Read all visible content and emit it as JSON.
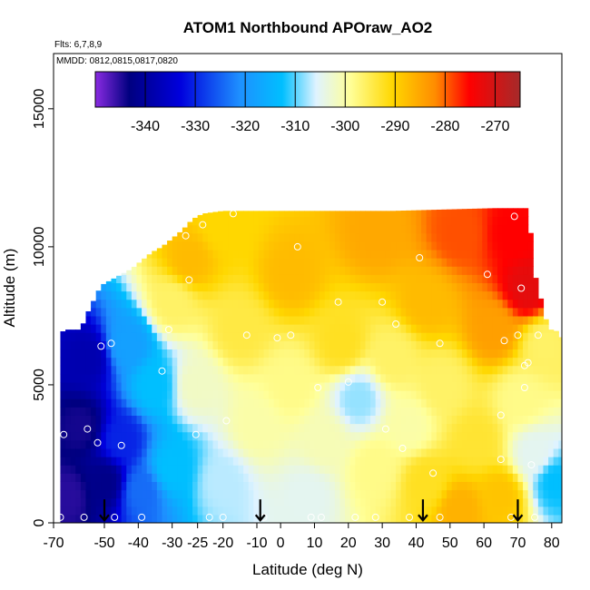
{
  "chart_data": {
    "type": "heatmap",
    "title": "ATOM1 Northbound APOraw_AO2",
    "annotations": {
      "flights": "Flts: 6,7,8,9",
      "dates": "MMDD: 0812,0815,0817,0820"
    },
    "xlabel": "Latitude (deg N)",
    "ylabel": "Altitude (m)",
    "xlim": [
      -70,
      80
    ],
    "ylim": [
      0,
      17000
    ],
    "x_ticks": [
      -70,
      -55,
      -40,
      -25,
      -10,
      10,
      30,
      50,
      70
    ],
    "x_tick_labels": [
      "-70",
      "-50",
      "-40",
      "-30",
      "-25",
      "-20",
      "-10",
      "0",
      "10",
      "20",
      "30",
      "40",
      "50",
      "60",
      "70",
      "80"
    ],
    "x_tick_values": [
      -70,
      -55,
      -45,
      -35,
      -27.5,
      -20,
      -10,
      -3,
      7,
      17,
      27,
      37,
      47,
      57,
      67,
      77
    ],
    "y_ticks": [
      0,
      5000,
      10000,
      15000
    ],
    "y_tick_labels": [
      "0",
      "5000",
      "10000",
      "15000"
    ],
    "colorbar": {
      "range": [
        -350,
        -265
      ],
      "tick_labels": [
        "-340",
        "-330",
        "-320",
        "-310",
        "-300",
        "-290",
        "-280",
        "-270"
      ],
      "tick_values": [
        -340,
        -330,
        -320,
        -310,
        -300,
        -290,
        -280,
        -270
      ]
    },
    "top_boundary": [
      [
        -68,
        6900
      ],
      [
        -66,
        7000
      ],
      [
        -62,
        7000
      ],
      [
        -60,
        7600
      ],
      [
        -58,
        8100
      ],
      [
        -56,
        8600
      ],
      [
        -53,
        8800
      ],
      [
        -50,
        9000
      ],
      [
        -47,
        9200
      ],
      [
        -44,
        9500
      ],
      [
        -41,
        9800
      ],
      [
        -38,
        10000
      ],
      [
        -35,
        10300
      ],
      [
        -32,
        10600
      ],
      [
        -29,
        11000
      ],
      [
        -26,
        11200
      ],
      [
        -20,
        11300
      ],
      [
        0,
        11300
      ],
      [
        30,
        11300
      ],
      [
        60,
        11400
      ],
      [
        70,
        11400
      ],
      [
        72,
        9000
      ],
      [
        74,
        8000
      ],
      [
        76,
        7000
      ],
      [
        78,
        7000
      ],
      [
        79,
        6800
      ],
      [
        80,
        6700
      ]
    ],
    "field_anchors": [
      {
        "lat": -66,
        "alt": 1000,
        "value": -345
      },
      {
        "lat": -62,
        "alt": 3500,
        "value": -344
      },
      {
        "lat": -60,
        "alt": 6000,
        "value": -338
      },
      {
        "lat": -55,
        "alt": 1500,
        "value": -342
      },
      {
        "lat": -50,
        "alt": 3000,
        "value": -330
      },
      {
        "lat": -48,
        "alt": 6500,
        "value": -318
      },
      {
        "lat": -44,
        "alt": 1200,
        "value": -324
      },
      {
        "lat": -40,
        "alt": 5000,
        "value": -312
      },
      {
        "lat": -35,
        "alt": 8000,
        "value": -296
      },
      {
        "lat": -35,
        "alt": 2000,
        "value": -312
      },
      {
        "lat": -30,
        "alt": 9500,
        "value": -287
      },
      {
        "lat": -28,
        "alt": 5000,
        "value": -302
      },
      {
        "lat": -20,
        "alt": 1500,
        "value": -307
      },
      {
        "lat": -20,
        "alt": 10800,
        "value": -290
      },
      {
        "lat": -15,
        "alt": 7000,
        "value": -294
      },
      {
        "lat": -10,
        "alt": 3500,
        "value": -300
      },
      {
        "lat": 0,
        "alt": 9000,
        "value": -287
      },
      {
        "lat": 0,
        "alt": 5000,
        "value": -298
      },
      {
        "lat": 5,
        "alt": 1000,
        "value": -305
      },
      {
        "lat": 10,
        "alt": 3000,
        "value": -301
      },
      {
        "lat": 15,
        "alt": 6500,
        "value": -292
      },
      {
        "lat": 20,
        "alt": 4500,
        "value": -308
      },
      {
        "lat": 25,
        "alt": 2000,
        "value": -298
      },
      {
        "lat": 25,
        "alt": 10500,
        "value": -285
      },
      {
        "lat": 30,
        "alt": 6000,
        "value": -296
      },
      {
        "lat": 35,
        "alt": 3500,
        "value": -300
      },
      {
        "lat": 40,
        "alt": 8000,
        "value": -287
      },
      {
        "lat": 40,
        "alt": 1500,
        "value": -292
      },
      {
        "lat": 45,
        "alt": 5000,
        "value": -296
      },
      {
        "lat": 50,
        "alt": 500,
        "value": -286
      },
      {
        "lat": 50,
        "alt": 10500,
        "value": -279
      },
      {
        "lat": 55,
        "alt": 3000,
        "value": -293
      },
      {
        "lat": 60,
        "alt": 7000,
        "value": -284
      },
      {
        "lat": 62,
        "alt": 1000,
        "value": -288
      },
      {
        "lat": 65,
        "alt": 10500,
        "value": -275
      },
      {
        "lat": 68,
        "alt": 4500,
        "value": -298
      },
      {
        "lat": 70,
        "alt": 8500,
        "value": -272
      },
      {
        "lat": 72,
        "alt": 2500,
        "value": -305
      },
      {
        "lat": 75,
        "alt": 6500,
        "value": -296
      },
      {
        "lat": 78,
        "alt": 1500,
        "value": -312
      }
    ],
    "sample_points": [
      [
        -67,
        3200
      ],
      [
        -68,
        200
      ],
      [
        -61,
        200
      ],
      [
        -60,
        3400
      ],
      [
        -57,
        2900
      ],
      [
        -56,
        6400
      ],
      [
        -53,
        6500
      ],
      [
        -52,
        200
      ],
      [
        -50,
        2800
      ],
      [
        -44,
        200
      ],
      [
        -38,
        5500
      ],
      [
        -36,
        7000
      ],
      [
        -31,
        10400
      ],
      [
        -30,
        8800
      ],
      [
        -28,
        3200
      ],
      [
        -26,
        10800
      ],
      [
        -24,
        200
      ],
      [
        -20,
        200
      ],
      [
        -19,
        3700
      ],
      [
        -17,
        11200
      ],
      [
        -13,
        6800
      ],
      [
        -8,
        200
      ],
      [
        -4,
        6700
      ],
      [
        0,
        6800
      ],
      [
        2,
        10000
      ],
      [
        6,
        200
      ],
      [
        8,
        4900
      ],
      [
        9,
        200
      ],
      [
        14,
        8000
      ],
      [
        17,
        5100
      ],
      [
        19,
        200
      ],
      [
        25,
        200
      ],
      [
        27,
        8000
      ],
      [
        28,
        3400
      ],
      [
        31,
        7200
      ],
      [
        33,
        2700
      ],
      [
        35,
        200
      ],
      [
        38,
        9600
      ],
      [
        42,
        1800
      ],
      [
        44,
        6500
      ],
      [
        44,
        200
      ],
      [
        58,
        9000
      ],
      [
        62,
        3900
      ],
      [
        62,
        2300
      ],
      [
        63,
        6600
      ],
      [
        65,
        200
      ],
      [
        66,
        11100
      ],
      [
        67,
        6800
      ],
      [
        68,
        8500
      ],
      [
        69,
        4900
      ],
      [
        69,
        5700
      ],
      [
        70,
        5800
      ],
      [
        71,
        2100
      ],
      [
        72,
        200
      ],
      [
        73,
        6800
      ]
    ],
    "arrows": [
      -55,
      -9,
      39,
      67
    ]
  }
}
